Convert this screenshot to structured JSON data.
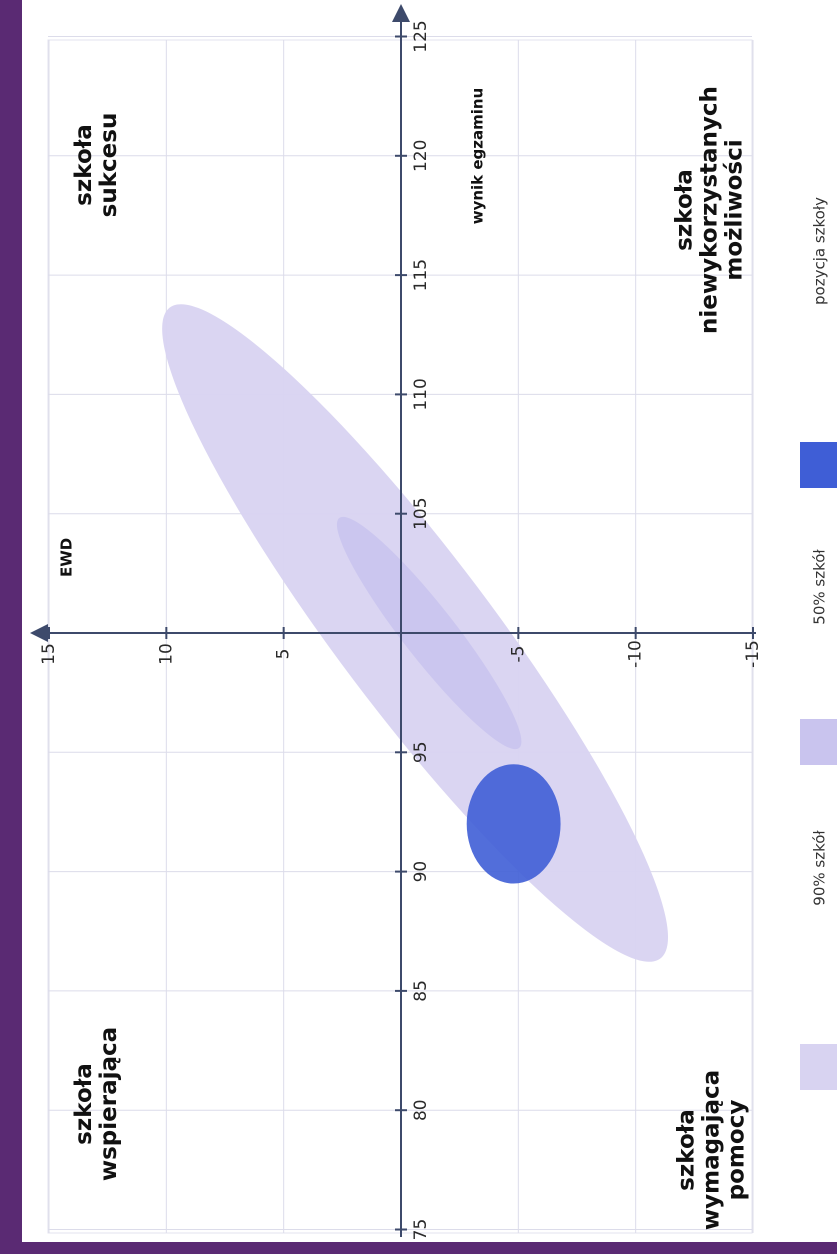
{
  "chart_data": {
    "type": "scatter",
    "xlabel": "wynik egzaminu",
    "ylabel": "EWD",
    "xlim": [
      75,
      125
    ],
    "ylim": [
      -15,
      15
    ],
    "x_ticks": [
      75,
      80,
      85,
      90,
      95,
      105,
      110,
      115,
      120,
      125
    ],
    "y_ticks": [
      15,
      10,
      5,
      -5,
      -10,
      -15
    ],
    "grid": true,
    "regions": [
      {
        "name": "90% szkół",
        "type": "ellipse",
        "center": [
          100,
          -0.6
        ],
        "x_range": [
          81.7,
          118.5
        ],
        "y_range": [
          -8.1,
          7.1
        ],
        "color": "#d8d3f1"
      },
      {
        "name": "50% szkół",
        "type": "ellipse",
        "center": [
          100,
          -1.2
        ],
        "x_range": [
          93.5,
          106.7
        ],
        "y_range": [
          -3.1,
          2.3
        ],
        "color": "#c9c4ee"
      },
      {
        "name": "pozycja szkoły",
        "type": "ellipse",
        "center": [
          92,
          -4.8
        ],
        "x_range": [
          89.5,
          94.5
        ],
        "y_range": [
          -6.7,
          -2.7
        ],
        "color": "#3f5ed6"
      }
    ],
    "quadrant_labels": [
      {
        "position": "top-left",
        "lines": [
          "szkoła",
          "sukcesu"
        ]
      },
      {
        "position": "top-right",
        "lines": [
          "szkoła",
          "niewykorzystanych",
          "możliwości"
        ]
      },
      {
        "position": "bottom-left",
        "lines": [
          "szkoła",
          "wspierająca"
        ]
      },
      {
        "position": "bottom-right",
        "lines": [
          "szkoła",
          "wymagająca",
          "pomocy"
        ]
      }
    ],
    "legend": {
      "placement": "bottom",
      "items": [
        {
          "label": "90% szkół",
          "color": "#d8d3f1"
        },
        {
          "label": "50% szkół",
          "color": "#c9c4ee"
        },
        {
          "label": "pozycja szkoły",
          "color": "#3f5ed6"
        }
      ]
    }
  }
}
